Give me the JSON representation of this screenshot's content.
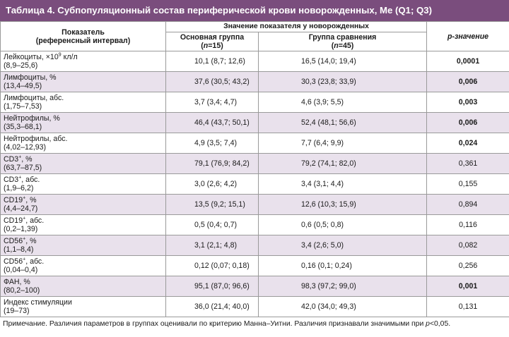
{
  "title": "Таблица 4. Субпопуляционный состав периферической крови новорожденных, Me (Q1; Q3)",
  "header": {
    "indicator": "Показатель",
    "indicator_sub": "(референсный интервал)",
    "group_header": "Значение показателя у новорожденных",
    "main_group": "Основная группа",
    "main_group_n_open": "(",
    "main_group_n_var": "n",
    "main_group_n_close": "=15)",
    "comparison_group": "Группа сравнения",
    "comparison_group_n_open": "(",
    "comparison_group_n_var": "n",
    "comparison_group_n_close": "=45)",
    "p_label": "p-значение"
  },
  "rows": [
    {
      "name": "Лейкоциты, ×10",
      "sup": "9",
      "name_tail": " кл/л",
      "ref": "(8,9–25,6)",
      "main": "10,1 (8,7; 12,6)",
      "comp": "16,5 (14,0; 19,4)",
      "p": "0,0001",
      "significant": true
    },
    {
      "name": "Лимфоциты, %",
      "sup": "",
      "name_tail": "",
      "ref": "(13,4–49,5)",
      "main": "37,6 (30,5; 43,2)",
      "comp": "30,3 (23,8; 33,9)",
      "p": "0,006",
      "significant": true
    },
    {
      "name": "Лимфоциты, абс.",
      "sup": "",
      "name_tail": "",
      "ref": "(1,75–7,53)",
      "main": "3,7 (3,4; 4,7)",
      "comp": "4,6 (3,9; 5,5)",
      "p": "0,003",
      "significant": true
    },
    {
      "name": "Нейтрофилы, %",
      "sup": "",
      "name_tail": "",
      "ref": "(35,3–68,1)",
      "main": "46,4 (43,7; 50,1)",
      "comp": "52,4 (48,1; 56,6)",
      "p": "0,006",
      "significant": true
    },
    {
      "name": "Нейтрофилы, абс.",
      "sup": "",
      "name_tail": "",
      "ref": "(4,02–12,93)",
      "main": "4,9 (3,5; 7,4)",
      "comp": "7,7 (6,4; 9,9)",
      "p": "0,024",
      "significant": true
    },
    {
      "name": "CD3",
      "sup": "+",
      "name_tail": ", %",
      "ref": "(63,7–87,5)",
      "main": "79,1 (76,9; 84,2)",
      "comp": "79,2 (74,1; 82,0)",
      "p": "0,361",
      "significant": false
    },
    {
      "name": "CD3",
      "sup": "+",
      "name_tail": ", абс.",
      "ref": "(1,9–6,2)",
      "main": "3,0 (2,6; 4,2)",
      "comp": "3,4 (3,1; 4,4)",
      "p": "0,155",
      "significant": false
    },
    {
      "name": "CD19",
      "sup": "+",
      "name_tail": ", %",
      "ref": "(4,4–24,7)",
      "main": "13,5 (9,2; 15,1)",
      "comp": "12,6 (10,3; 15,9)",
      "p": "0,894",
      "significant": false
    },
    {
      "name": "CD19",
      "sup": "+",
      "name_tail": ", абс.",
      "ref": "(0,2–1,39)",
      "main": "0,5 (0,4; 0,7)",
      "comp": "0,6 (0,5; 0,8)",
      "p": "0,116",
      "significant": false
    },
    {
      "name": "CD56",
      "sup": "+",
      "name_tail": ", %",
      "ref": "(1,1–8,4)",
      "main": "3,1 (2,1; 4,8)",
      "comp": "3,4 (2,6; 5,0)",
      "p": "0,082",
      "significant": false
    },
    {
      "name": "CD56",
      "sup": "+",
      "name_tail": ", абс.",
      "ref": "(0,04–0,4)",
      "main": "0,12 (0,07; 0,18)",
      "comp": "0,16 (0,1; 0,24)",
      "p": "0,256",
      "significant": false
    },
    {
      "name": "ФАН, %",
      "sup": "",
      "name_tail": "",
      "ref": "(80,2–100)",
      "main": "95,1 (87,0; 96,6)",
      "comp": "98,3 (97,2; 99,0)",
      "p": "0,001",
      "significant": true
    },
    {
      "name": "Индекс стимуляции",
      "sup": "",
      "name_tail": "",
      "ref": "(19–73)",
      "main": "36,0 (21,4; 40,0)",
      "comp": "42,0 (34,0; 49,3)",
      "p": "0,131",
      "significant": false
    }
  ],
  "note_pre": "Примечание. Различия параметров в группах оценивали по критерию Манна–Уитни. Различия признавали значимыми при ",
  "note_var": "p",
  "note_post": "<0,05."
}
